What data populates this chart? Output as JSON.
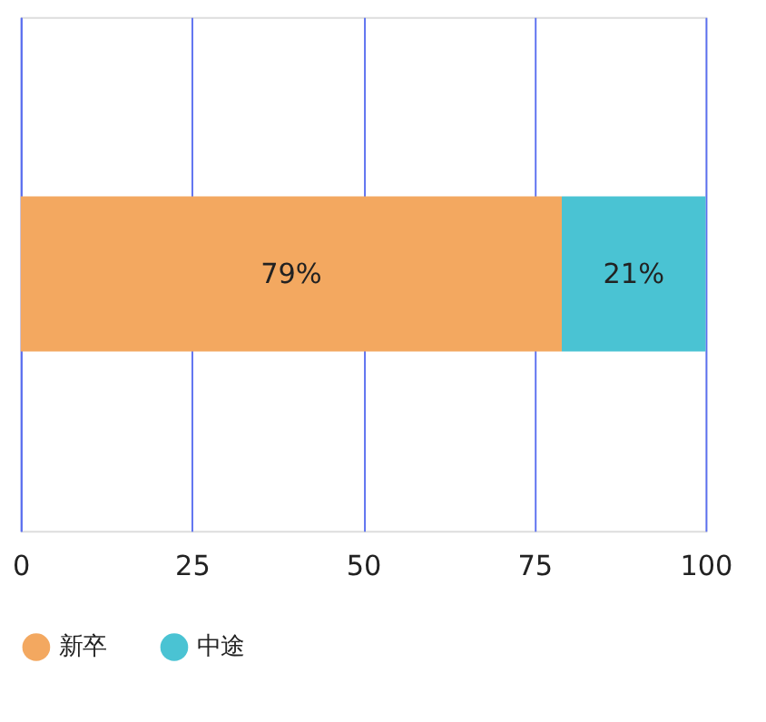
{
  "chart_data": {
    "type": "bar",
    "orientation": "horizontal",
    "stacked": true,
    "categories": [
      null
    ],
    "series": [
      {
        "name": "新卒",
        "color": "#f3a860",
        "values": [
          79
        ],
        "value_labels": [
          "79%"
        ]
      },
      {
        "name": "中途",
        "color": "#4ac3d3",
        "values": [
          21
        ],
        "value_labels": [
          "21%"
        ]
      }
    ],
    "xlim": [
      0,
      100
    ],
    "xticks": [
      0,
      25,
      50,
      75,
      100
    ],
    "grid": "x",
    "legend": "bottom"
  }
}
